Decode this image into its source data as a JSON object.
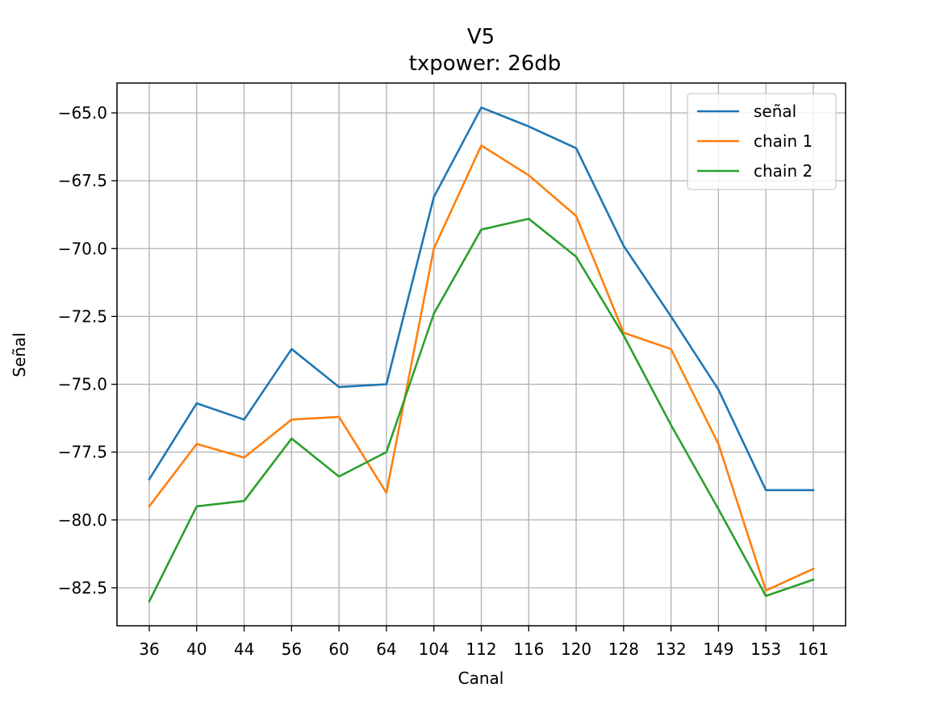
{
  "chart_data": {
    "type": "line",
    "title": "V5",
    "subtitle": "txpower: 26db",
    "xlabel": "Canal",
    "ylabel": "Señal",
    "categories": [
      "36",
      "40",
      "44",
      "56",
      "60",
      "64",
      "104",
      "112",
      "116",
      "120",
      "128",
      "132",
      "149",
      "153",
      "161"
    ],
    "yticks": [
      "−65.0",
      "−67.5",
      "−70.0",
      "−72.5",
      "−75.0",
      "−77.5",
      "−80.0",
      "−82.5"
    ],
    "ytick_values": [
      -65.0,
      -67.5,
      -70.0,
      -72.5,
      -75.0,
      -77.5,
      -80.0,
      -82.5
    ],
    "ylim": [
      -83.9,
      -63.9
    ],
    "grid": true,
    "legend_position": "top-right",
    "series": [
      {
        "name": "señal",
        "color": "#1f77b4",
        "values": [
          -78.5,
          -75.7,
          -76.3,
          -73.7,
          -75.1,
          -75.0,
          -68.1,
          -64.8,
          -65.5,
          -66.3,
          -69.9,
          -72.5,
          -75.2,
          -78.9,
          -78.9
        ]
      },
      {
        "name": "chain 1",
        "color": "#ff7f0e",
        "values": [
          -79.5,
          -77.2,
          -77.7,
          -76.3,
          -76.2,
          -79.0,
          -70.0,
          -66.2,
          -67.3,
          -68.8,
          -73.1,
          -73.7,
          -77.2,
          -82.6,
          -81.8
        ]
      },
      {
        "name": "chain 2",
        "color": "#2ca02c",
        "values": [
          -83.0,
          -79.5,
          -79.3,
          -77.0,
          -78.4,
          -77.5,
          -72.4,
          -69.3,
          -68.9,
          -70.3,
          -73.2,
          -76.5,
          -79.6,
          -82.8,
          -82.2
        ]
      }
    ]
  }
}
